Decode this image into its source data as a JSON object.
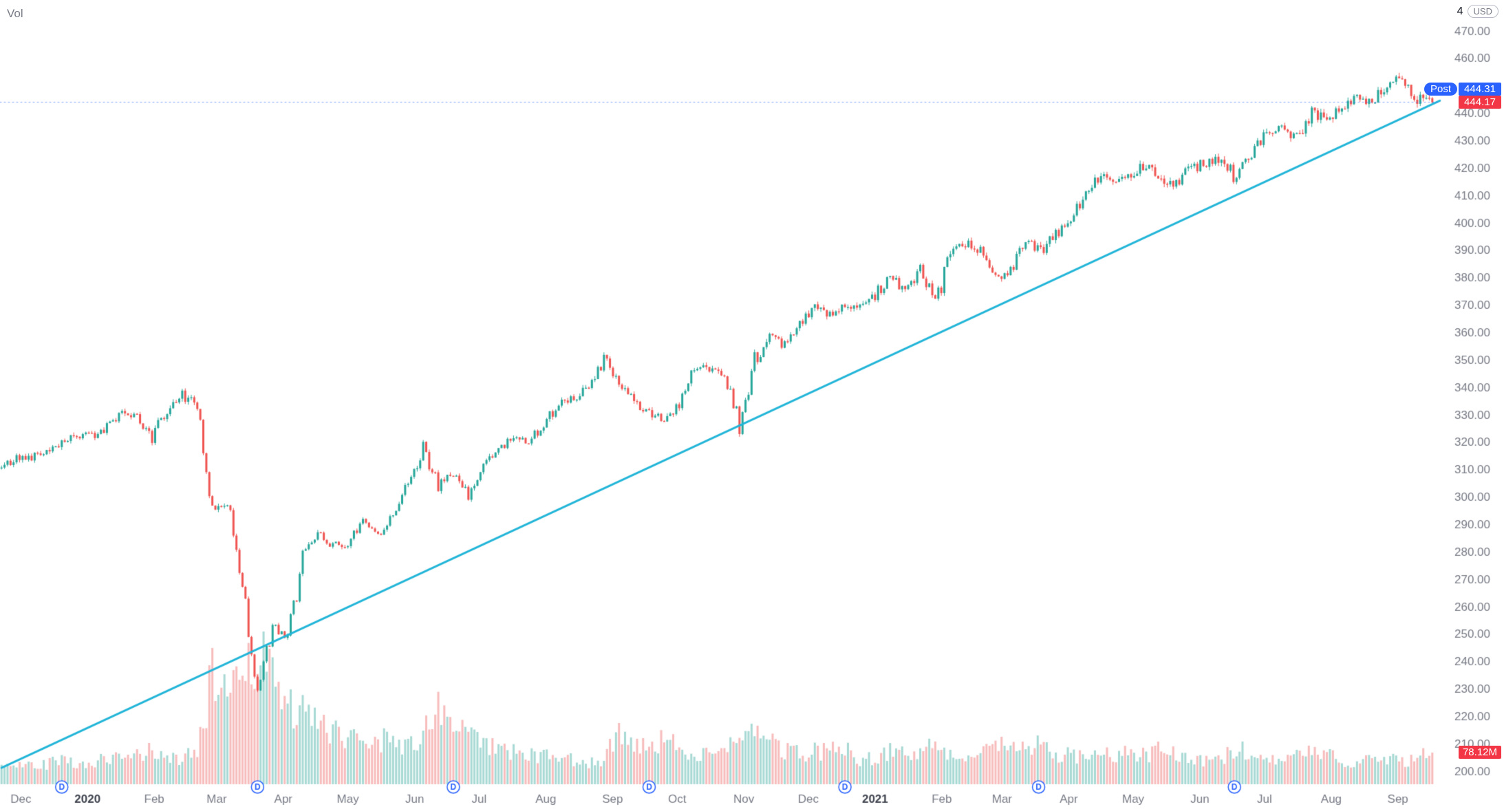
{
  "pane": {
    "vol_label": "Vol"
  },
  "header": {
    "partial_text": "4",
    "currency_chip": "USD"
  },
  "badges": {
    "post_label": "Post",
    "post_price": "444.31",
    "last_price": "444.17",
    "volume": "78.12M"
  },
  "colors": {
    "background": "#ffffff",
    "up": "#26a69a",
    "down": "#ef5350",
    "vol_up": "#a8d9d4",
    "vol_down": "#f7bcbc",
    "trendline": "#22b5d8",
    "post_badge": "#2962ff",
    "last_badge": "#f23645",
    "vol_badge": "#f23645",
    "axis_text": "#787b86",
    "year_text": "#3f434e",
    "dotted_line": "#2962ff",
    "dividend": "#2962ff"
  },
  "chart_data": {
    "type": "candlestick",
    "description": "Daily candlestick price chart with volume overlay, cyan ascending trendline, dividend (D) markers, post-market price 444.31 and last price 444.17 USD, current volume 78.12M",
    "days_per_week": 5,
    "seed": 42,
    "last_close": 444.17,
    "post_price": 444.31,
    "current_volume_millions": 78.12,
    "ylim": [
      195.5,
      481.5
    ],
    "yticks": {
      "min": 200,
      "max": 470,
      "step": 10
    },
    "weekly_close_anchors": [
      311.0,
      314.3,
      314.9,
      317.3,
      320.7,
      322.9,
      322.4,
      325.7,
      331.9,
      328.8,
      321.7,
      332.2,
      337.6,
      333.5,
      296.3,
      297.5,
      269.3,
      228.8,
      253.4,
      248.2,
      278.2,
      286.6,
      282.9,
      282.8,
      292.4,
      286.3,
      295.4,
      304.3,
      319.3,
      304.2,
      308.6,
      300.1,
      312.2,
      317.6,
      321.7,
      320.9,
      326.5,
      334.6,
      336.8,
      339.5,
      350.6,
      342.6,
      334.1,
      330.7,
      328.7,
      333.8,
      346.9,
      347.3,
      345.8,
      326.5,
      350.2,
      358.1,
      355.3,
      363.7,
      369.9,
      366.3,
      369.2,
      369.0,
      373.9,
      381.3,
      375.7,
      382.9,
      370.1,
      387.7,
      392.6,
      390.0,
      380.4,
      383.6,
      394.1,
      389.5,
      395.8,
      400.6,
      411.5,
      417.3,
      416.7,
      417.3,
      422.1,
      416.6,
      414.9,
      420.0,
      422.6,
      424.3,
      414.9,
      426.6,
      433.7,
      435.5,
      431.3,
      439.9,
      438.5,
      442.5,
      445.9,
      443.4,
      450.3,
      453.1,
      445.4,
      444.17
    ],
    "weekly_volume_anchors_millions": [
      48,
      42,
      55,
      50,
      68,
      45,
      58,
      62,
      60,
      70,
      85,
      65,
      60,
      92,
      260,
      240,
      300,
      330,
      260,
      200,
      170,
      150,
      130,
      120,
      110,
      115,
      100,
      95,
      120,
      180,
      130,
      120,
      95,
      85,
      80,
      75,
      70,
      65,
      60,
      55,
      60,
      130,
      110,
      95,
      105,
      90,
      80,
      75,
      80,
      110,
      120,
      100,
      85,
      75,
      80,
      85,
      95,
      55,
      70,
      85,
      75,
      70,
      105,
      80,
      65,
      70,
      100,
      110,
      95,
      100,
      75,
      70,
      65,
      70,
      70,
      75,
      70,
      85,
      70,
      60,
      55,
      60,
      95,
      65,
      55,
      60,
      70,
      75,
      70,
      60,
      55,
      65,
      60,
      55,
      70,
      78
    ],
    "trendline": {
      "from": {
        "week": 0,
        "price": 201.5
      },
      "to": {
        "week": 95.5,
        "price": 444.8
      }
    },
    "dividend_markers": {
      "label": "D",
      "weeks": [
        4.0,
        17.0,
        30.0,
        43.0,
        56.0,
        68.86,
        81.86
      ]
    },
    "x_axis_labels": [
      {
        "label": "Dec",
        "week": 1.29
      },
      {
        "label": "2020",
        "week": 5.71,
        "year": true
      },
      {
        "label": "Feb",
        "week": 10.14
      },
      {
        "label": "Mar",
        "week": 14.29
      },
      {
        "label": "Apr",
        "week": 18.71
      },
      {
        "label": "May",
        "week": 23.0
      },
      {
        "label": "Jun",
        "week": 27.43
      },
      {
        "label": "Jul",
        "week": 31.71
      },
      {
        "label": "Aug",
        "week": 36.14
      },
      {
        "label": "Sep",
        "week": 40.57
      },
      {
        "label": "Oct",
        "week": 44.86
      },
      {
        "label": "Nov",
        "week": 49.29
      },
      {
        "label": "Dec",
        "week": 53.57
      },
      {
        "label": "2021",
        "week": 58.0,
        "year": true
      },
      {
        "label": "Feb",
        "week": 62.43
      },
      {
        "label": "Mar",
        "week": 66.43
      },
      {
        "label": "Apr",
        "week": 70.86
      },
      {
        "label": "May",
        "week": 75.14
      },
      {
        "label": "Jun",
        "week": 79.57
      },
      {
        "label": "Jul",
        "week": 83.86
      },
      {
        "label": "Aug",
        "week": 88.29
      },
      {
        "label": "Sep",
        "week": 92.71
      }
    ]
  }
}
